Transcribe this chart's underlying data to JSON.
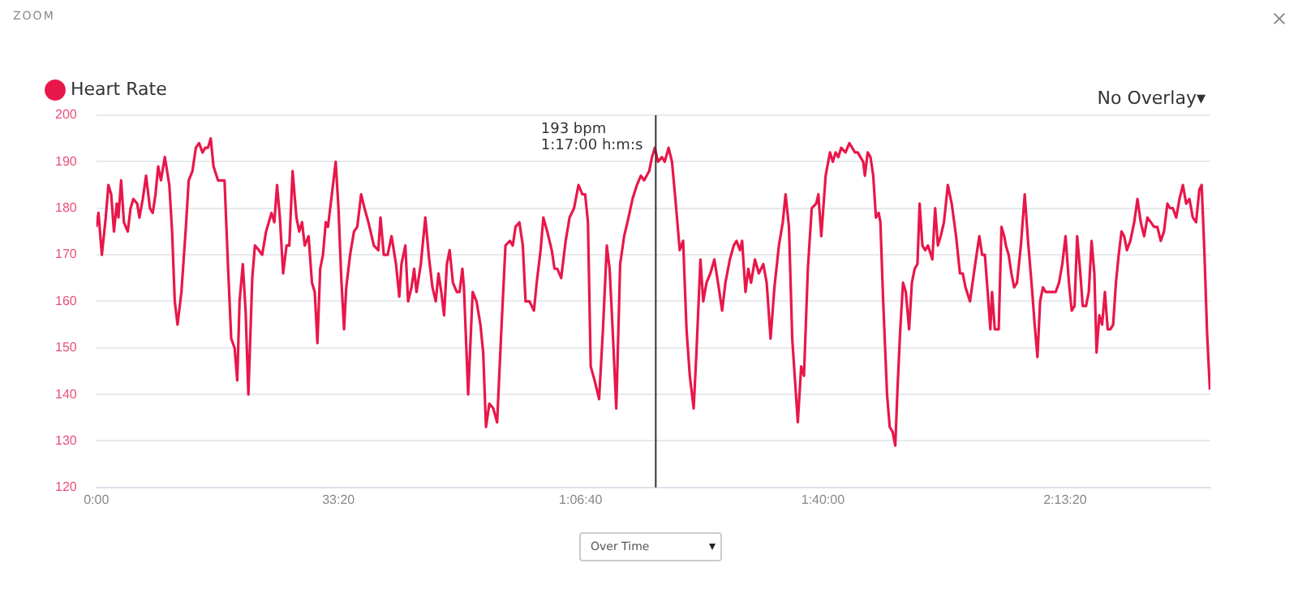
{
  "chart_data": {
    "type": "line",
    "title": "ZOOM",
    "x": [
      0,
      18,
      46,
      78,
      100,
      123,
      146,
      169,
      183,
      205,
      228,
      260,
      283,
      306,
      338,
      356,
      384,
      411,
      443,
      466,
      489,
      511,
      534,
      566,
      603,
      626,
      648,
      671,
      703,
      740,
      763,
      794,
      822,
      849,
      877,
      900,
      922,
      945,
      968,
      1005,
      1059,
      1087,
      1114,
      1142,
      1164,
      1183,
      1210,
      1233,
      1256,
      1288,
      1310,
      1342,
      1370,
      1402,
      1447,
      1470,
      1493,
      1516,
      1543,
      1571,
      1594,
      1621,
      1653,
      1676,
      1699,
      1721,
      1753,
      1781,
      1804,
      1826,
      1849,
      1872,
      1895,
      1913,
      1950,
      1977,
      2000,
      2023,
      2046,
      2064,
      2096,
      2128,
      2155,
      2187,
      2215,
      2247,
      2292,
      2329,
      2347,
      2374,
      2406,
      2438,
      2475,
      2502,
      2520,
      2552,
      2575,
      2603,
      2625,
      2644,
      2680,
      2717,
      2749,
      2776,
      2803,
      2826,
      2849,
      2872,
      2895,
      2918,
      2945,
      2977,
      3000,
      3023,
      3036,
      3071,
      3108,
      3140,
      3172,
      3195,
      3218,
      3246,
      3278,
      3310,
      3347,
      3379,
      3416,
      3439,
      3462,
      3494,
      3522,
      3545,
      3577,
      3614,
      3637,
      3669,
      3692,
      3724,
      3761,
      3784,
      3807,
      3839,
      3876,
      3908,
      3945,
      3982,
      4014,
      4037,
      4060,
      4083,
      4115,
      4152,
      4184,
      4216,
      4239,
      4262,
      4294,
      4326,
      4359,
      4395,
      4428,
      4464,
      4497,
      4524,
      4566,
      4589,
      4612,
      4639,
      4671,
      4694,
      4726,
      4754,
      4782,
      4818,
      4846,
      4874,
      4901,
      4933,
      4956,
      4989,
      5012,
      5039,
      5071,
      5104,
      5140,
      5168,
      5195,
      5232,
      5264,
      5287,
      5315,
      5333,
      5361,
      5384,
      5407,
      5439,
      5471,
      5508,
      5536,
      5568,
      5600,
      5637,
      5669,
      5692,
      5720,
      5747,
      5770,
      5793,
      5821,
      5844,
      5876,
      5908,
      5945,
      5963,
      5987,
      6023,
      6037,
      6059,
      6082,
      6105,
      6128,
      6151,
      6187,
      6219,
      6242,
      6265,
      6288,
      6310,
      6333,
      6347,
      6370,
      6393,
      6416,
      6438,
      6461,
      6475,
      6498,
      6530,
      6552,
      6575,
      6598,
      6616,
      6639,
      6662,
      6685,
      6712,
      6735,
      6758,
      6781,
      6799,
      6822,
      6845,
      6868,
      6904,
      6927,
      6950,
      6973,
      7000,
      7032,
      7064,
      7100,
      7132,
      7155,
      7178,
      7215,
      7247,
      7269,
      7292,
      7315,
      7338,
      7361,
      7383,
      7397,
      7420,
      7452,
      7475,
      7498,
      7511,
      7534,
      7557,
      7580,
      7603,
      7635,
      7667,
      7694,
      7726,
      7749,
      7772,
      7794,
      7817,
      7840,
      7863,
      7895,
      7922,
      7950,
      7977,
      8004,
      8032,
      8055,
      8078,
      8100,
      8123,
      8146,
      8173,
      8196,
      8219,
      8242,
      8260,
      8283,
      8306,
      8329,
      8352,
      8374,
      8397,
      8420,
      8443,
      8466,
      8488,
      8511,
      8539,
      8571,
      8598,
      8625,
      8653,
      8680,
      8708,
      8735,
      8762,
      8790,
      8817,
      8845,
      8868,
      8890,
      8918,
      8945,
      8973,
      9000,
      9027,
      9055,
      9082,
      9109,
      9128,
      9150,
      9173,
      9196
    ],
    "series": [
      {
        "name": "Heart Rate",
        "color": "#e8174a",
        "values": [
          176,
          179,
          170,
          178,
          185,
          183,
          175,
          181,
          178,
          186,
          177,
          175,
          180,
          182,
          181,
          178,
          182,
          187,
          180,
          179,
          183,
          189,
          186,
          191,
          185,
          175,
          160,
          155,
          162,
          176,
          186,
          188,
          193,
          194,
          192,
          193,
          193,
          195,
          189,
          186,
          186,
          168,
          152,
          150,
          143,
          160,
          168,
          158,
          140,
          165,
          172,
          171,
          170,
          175,
          179,
          177,
          185,
          178,
          166,
          172,
          172,
          188,
          178,
          175,
          177,
          172,
          174,
          164,
          162,
          151,
          167,
          170,
          177,
          176,
          184,
          190,
          180,
          165,
          154,
          163,
          170,
          175,
          176,
          183,
          180,
          177,
          172,
          171,
          178,
          170,
          170,
          174,
          168,
          161,
          168,
          172,
          160,
          163,
          167,
          162,
          168,
          178,
          169,
          163,
          160,
          166,
          162,
          157,
          168,
          171,
          164,
          162,
          162,
          167,
          163,
          140,
          162,
          160,
          155,
          149,
          133,
          138,
          137,
          134,
          155,
          172,
          173,
          172,
          176,
          177,
          172,
          160,
          160,
          158,
          164,
          171,
          178,
          175,
          171,
          167,
          167,
          165,
          173,
          178,
          180,
          185,
          183,
          183,
          177,
          146,
          143,
          139,
          154,
          172,
          167,
          155,
          137,
          168,
          174,
          178,
          182,
          185,
          187,
          186,
          188,
          191,
          193,
          190,
          191,
          190,
          193,
          190,
          182,
          171,
          173,
          154,
          144,
          137,
          149,
          169,
          160,
          164,
          166,
          169,
          163,
          158,
          164,
          169,
          172,
          173,
          171,
          173,
          162,
          167,
          164,
          169,
          166,
          168,
          164,
          152,
          163,
          172,
          177,
          183,
          176,
          152,
          143,
          134,
          146,
          144,
          167,
          180,
          181,
          183,
          174,
          187,
          189,
          192,
          190,
          192,
          191,
          193,
          192,
          194,
          193,
          192,
          192,
          191,
          190,
          187,
          192,
          191,
          187,
          178,
          179,
          177,
          160,
          140,
          133,
          132,
          129,
          141,
          154,
          164,
          162,
          154,
          164,
          167,
          168,
          181,
          172,
          171,
          172,
          169,
          180,
          172,
          174,
          177,
          185,
          181,
          174,
          166,
          166,
          163,
          160,
          166,
          170,
          174,
          170,
          170,
          162,
          154,
          162,
          154,
          154,
          176,
          174,
          172,
          170,
          166,
          163,
          164,
          172,
          183,
          173,
          163,
          155,
          148,
          160,
          163,
          162,
          162,
          162,
          162,
          164,
          168,
          174,
          164,
          158,
          159,
          174,
          167,
          159,
          159,
          162,
          173,
          166,
          149,
          157,
          155,
          162,
          154,
          154,
          155,
          164,
          170,
          175,
          174,
          171,
          173,
          177,
          182,
          177,
          174,
          178,
          177,
          176,
          176,
          173,
          175,
          181,
          180,
          180,
          178,
          182,
          185,
          181,
          182,
          178,
          177,
          184,
          185,
          171,
          153,
          141
        ]
      }
    ],
    "xlim": [
      0,
      9200
    ],
    "xticks": [
      {
        "value": 0,
        "label": "0:00"
      },
      {
        "value": 2000,
        "label": "33:20"
      },
      {
        "value": 4000,
        "label": "1:06:40"
      },
      {
        "value": 6000,
        "label": "1:40:00"
      },
      {
        "value": 8000,
        "label": "2:13:20"
      }
    ],
    "ylim": [
      120,
      200
    ],
    "yticks": [
      120,
      130,
      140,
      150,
      160,
      170,
      180,
      190,
      200
    ],
    "grid": "y",
    "legend": "top left",
    "marker": "none",
    "line_style": "solid",
    "ref_lines": [
      {
        "axis": "x",
        "value": 4620,
        "color": "#333333"
      }
    ],
    "annotations": [
      {
        "text": "193 bpm\n1:17:00 h:m:s",
        "x": 4620,
        "y": 193
      },
      "No Overlay▾",
      "Over Time"
    ]
  }
}
